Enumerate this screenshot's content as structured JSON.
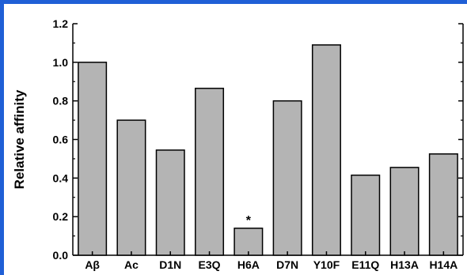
{
  "chart_data": {
    "type": "bar",
    "ylabel": "Relative affinity",
    "ylim": [
      0.0,
      1.2
    ],
    "yticks": [
      "0.0",
      "0.2",
      "0.4",
      "0.6",
      "0.8",
      "1.0",
      "1.2"
    ],
    "categories": [
      "Aβ",
      "Ac",
      "D1N",
      "E3Q",
      "H6A",
      "D7N",
      "Y10F",
      "E11Q",
      "H13A",
      "H14A"
    ],
    "values": [
      1.0,
      0.7,
      0.545,
      0.865,
      0.14,
      0.8,
      1.09,
      0.415,
      0.455,
      0.525
    ],
    "annotations": [
      {
        "category": "H6A",
        "text": "*"
      }
    ],
    "bar_color": "#b4b4b4",
    "frame_color": "#1f5fd6"
  }
}
